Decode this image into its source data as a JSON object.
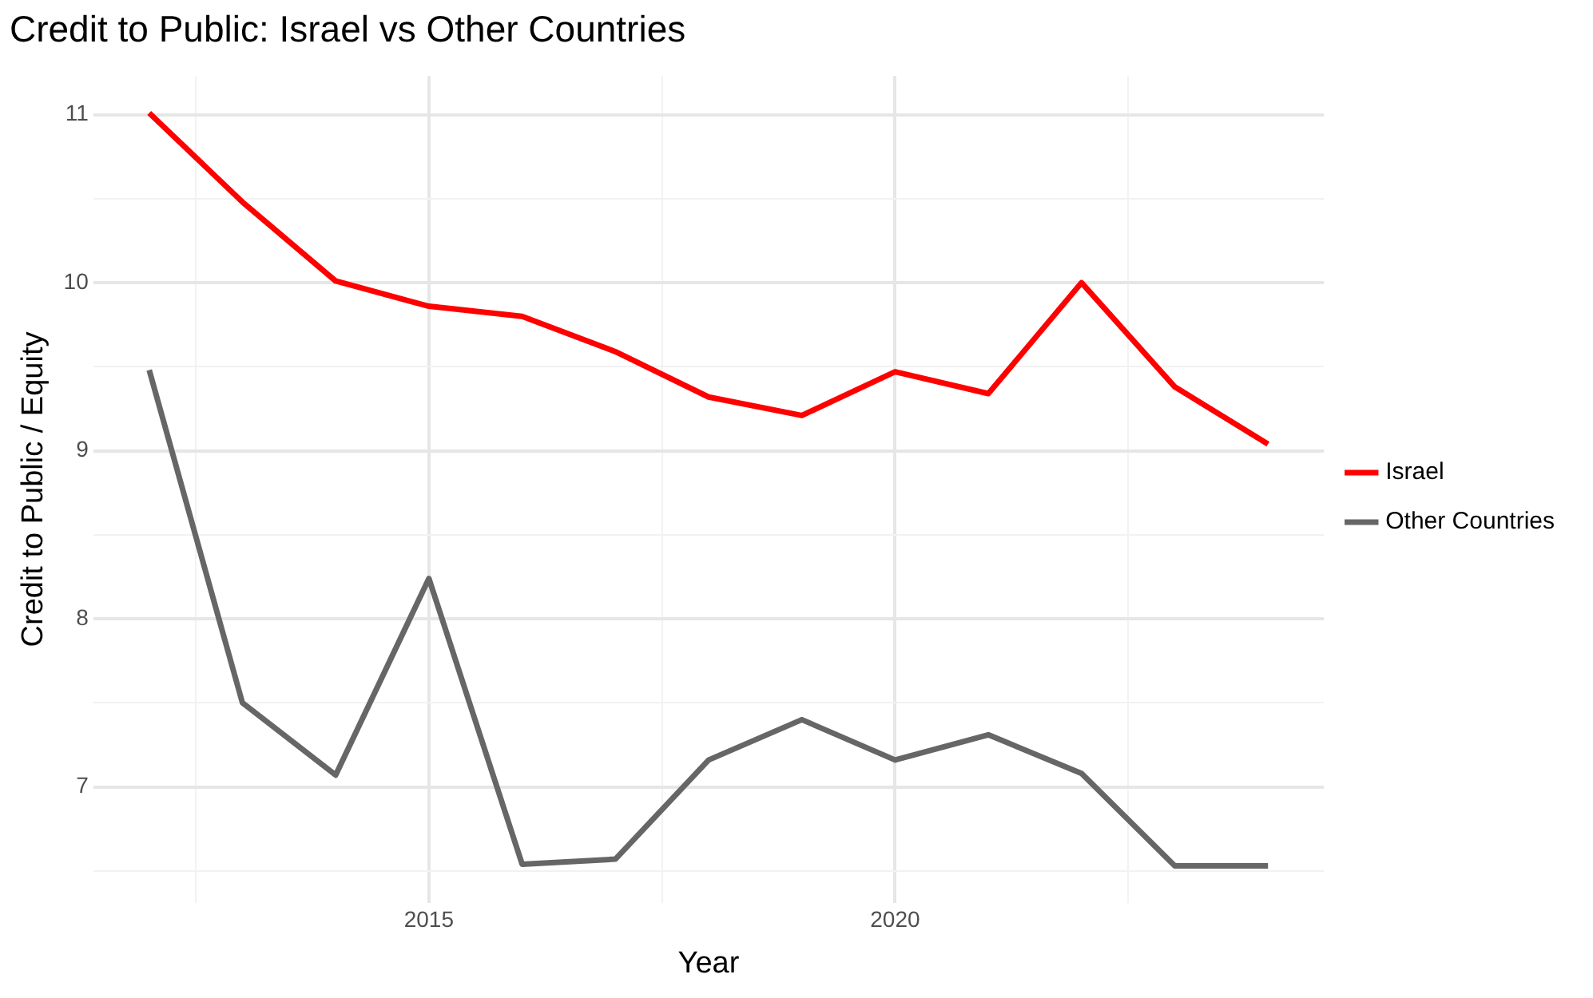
{
  "chart_data": {
    "type": "line",
    "title": "Credit to Public: Israel vs Other Countries",
    "xlabel": "Year",
    "ylabel": "Credit to Public / Equity",
    "x": [
      2012,
      2013,
      2014,
      2015,
      2016,
      2017,
      2018,
      2019,
      2020,
      2021,
      2022,
      2023,
      2024
    ],
    "series": [
      {
        "name": "Israel",
        "color": "#ff0000",
        "values": [
          11.01,
          10.48,
          10.01,
          9.86,
          9.8,
          9.59,
          9.32,
          9.21,
          9.47,
          9.34,
          10.0,
          9.38,
          9.04
        ]
      },
      {
        "name": "Other Countries",
        "color": "#666666",
        "values": [
          9.48,
          7.5,
          7.07,
          8.24,
          6.54,
          6.57,
          7.16,
          7.4,
          7.16,
          7.31,
          7.08,
          6.53,
          6.53
        ]
      }
    ],
    "xlim": [
      2011.4,
      2024.6
    ],
    "xticks": [
      {
        "value": 2012.5,
        "label": null
      },
      2015,
      {
        "value": 2017.5,
        "label": null
      },
      2020,
      {
        "value": 2022.5,
        "label": null
      }
    ],
    "ylim": [
      6.31,
      11.23
    ],
    "yticks": [
      {
        "value": 6.5,
        "label": null
      },
      7,
      {
        "value": 7.5,
        "label": null
      },
      8,
      {
        "value": 8.5,
        "label": null
      },
      9,
      {
        "value": 9.5,
        "label": null
      },
      10,
      {
        "value": 10.5,
        "label": null
      },
      11
    ],
    "grid": true,
    "legend": "right",
    "marker": "none",
    "line_style": "solid"
  }
}
